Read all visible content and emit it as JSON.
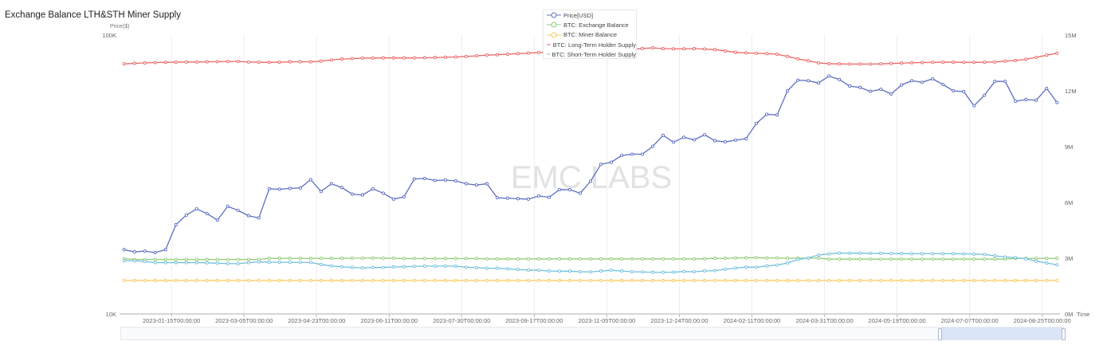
{
  "title": "Exchange Balance LTH&STH Miner Supply",
  "watermark": "EMC LABS",
  "chart_data": {
    "type": "line",
    "title": "Exchange Balance LTH&STH Miner Supply",
    "left_axis": {
      "label": "Price($)",
      "scale": "log",
      "range": [
        10000,
        100000
      ],
      "ticks": [
        "10K",
        "100K"
      ]
    },
    "right_axis": {
      "label": "",
      "scale": "linear",
      "range": [
        0,
        15000000
      ],
      "ticks": [
        "0M",
        "3M",
        "6M",
        "9M",
        "12M",
        "15M"
      ]
    },
    "x_axis": {
      "label": "Time",
      "type": "time",
      "xlim": [
        "2022-12-12",
        "2024-09-06"
      ],
      "ticks": [
        "2023-01-15T00:00:00",
        "2023-03-05T00:00:00",
        "2023-04-23T00:00:00",
        "2023-06-11T00:00:00",
        "2023-07-30T00:00:00",
        "2023-09-17T00:00:00",
        "2023-11-05T00:00:00",
        "2023-12-24T00:00:00",
        "2024-02-11T00:00:00",
        "2024-03-31T00:00:00",
        "2024-05-19T00:00:00",
        "2024-07-07T00:00:00",
        "2024-08-25T00:00:00"
      ]
    },
    "grid": {
      "vertical": true,
      "horizontal": false
    },
    "legend_placement": "top-center",
    "x": [
      "2022-12-14",
      "2022-12-21",
      "2022-12-28",
      "2023-01-04",
      "2023-01-11",
      "2023-01-18",
      "2023-01-25",
      "2023-02-01",
      "2023-02-08",
      "2023-02-15",
      "2023-02-22",
      "2023-03-01",
      "2023-03-08",
      "2023-03-15",
      "2023-03-22",
      "2023-03-29",
      "2023-04-05",
      "2023-04-12",
      "2023-04-19",
      "2023-04-26",
      "2023-05-03",
      "2023-05-10",
      "2023-05-17",
      "2023-05-24",
      "2023-05-31",
      "2023-06-07",
      "2023-06-14",
      "2023-06-21",
      "2023-06-28",
      "2023-07-05",
      "2023-07-12",
      "2023-07-19",
      "2023-07-26",
      "2023-08-02",
      "2023-08-09",
      "2023-08-16",
      "2023-08-23",
      "2023-08-30",
      "2023-09-06",
      "2023-09-13",
      "2023-09-20",
      "2023-09-27",
      "2023-10-04",
      "2023-10-11",
      "2023-10-18",
      "2023-10-25",
      "2023-11-01",
      "2023-11-08",
      "2023-11-15",
      "2023-11-22",
      "2023-11-29",
      "2023-12-06",
      "2023-12-13",
      "2023-12-20",
      "2023-12-27",
      "2024-01-03",
      "2024-01-10",
      "2024-01-17",
      "2024-01-24",
      "2024-01-31",
      "2024-02-07",
      "2024-02-14",
      "2024-02-21",
      "2024-02-28",
      "2024-03-06",
      "2024-03-13",
      "2024-03-20",
      "2024-03-27",
      "2024-04-03",
      "2024-04-10",
      "2024-04-17",
      "2024-04-24",
      "2024-05-01",
      "2024-05-08",
      "2024-05-15",
      "2024-05-22",
      "2024-05-29",
      "2024-06-05",
      "2024-06-12",
      "2024-06-19",
      "2024-06-26",
      "2024-07-03",
      "2024-07-10",
      "2024-07-17",
      "2024-07-24",
      "2024-07-31",
      "2024-08-07",
      "2024-08-14",
      "2024-08-21",
      "2024-08-28",
      "2024-09-04"
    ],
    "series": [
      {
        "name": "Price[USD]",
        "axis": "left",
        "color": "#5d6ec2",
        "values": [
          17000,
          16700,
          16800,
          16600,
          17000,
          20900,
          22600,
          23800,
          22900,
          21700,
          24300,
          23500,
          22500,
          22100,
          28100,
          28000,
          28200,
          28300,
          30300,
          27500,
          29300,
          28400,
          26900,
          26700,
          28100,
          27100,
          25800,
          26300,
          30500,
          30600,
          30100,
          30200,
          30000,
          29300,
          29000,
          29300,
          26100,
          26000,
          25900,
          25800,
          26500,
          26200,
          27900,
          27900,
          27100,
          29900,
          34400,
          35000,
          37000,
          37400,
          37400,
          39900,
          43700,
          41300,
          43000,
          42100,
          43900,
          41800,
          41400,
          42000,
          42500,
          48200,
          52000,
          51700,
          63100,
          68900,
          68600,
          67300,
          71300,
          69300,
          65600,
          64900,
          62800,
          63900,
          61500,
          66200,
          68600,
          67700,
          69700,
          66500,
          63100,
          62700,
          55800,
          60800,
          68200,
          68200,
          57900,
          58700,
          58400,
          64400,
          57300
        ]
      },
      {
        "name": "BTC: Exchange Balance",
        "axis": "right",
        "color": "#91cc75",
        "values": [
          2970000,
          2930000,
          2930000,
          2930000,
          2930000,
          2930000,
          2930000,
          2930000,
          2930000,
          2930000,
          2930000,
          2930000,
          2930000,
          2930000,
          2990000,
          2990000,
          2990000,
          2990000,
          2990000,
          2990000,
          2990000,
          2990000,
          3000000,
          3000000,
          3010000,
          3000000,
          3000000,
          2980000,
          2980000,
          2980000,
          2980000,
          2980000,
          2980000,
          2980000,
          2980000,
          2960000,
          2960000,
          2960000,
          2960000,
          2960000,
          2960000,
          2960000,
          2960000,
          2960000,
          2960000,
          2960000,
          2960000,
          2960000,
          2960000,
          2960000,
          2960000,
          2960000,
          2960000,
          2960000,
          2960000,
          2960000,
          2970000,
          2990000,
          2990000,
          3010000,
          3020000,
          3030000,
          3010000,
          3010000,
          3000000,
          3000000,
          3000000,
          3000000,
          2950000,
          2950000,
          2950000,
          2950000,
          2950000,
          2950000,
          2950000,
          2950000,
          2950000,
          2950000,
          2950000,
          2950000,
          2950000,
          2950000,
          2950000,
          2950000,
          2950000,
          2950000,
          2990000,
          2990000,
          2990000,
          2990000,
          2990000
        ]
      },
      {
        "name": "BTC: Miner Balance",
        "axis": "right",
        "color": "#fac858",
        "values": [
          1800000,
          1800000,
          1800000,
          1800000,
          1800000,
          1800000,
          1800000,
          1800000,
          1800000,
          1800000,
          1800000,
          1800000,
          1800000,
          1800000,
          1800000,
          1800000,
          1800000,
          1800000,
          1800000,
          1800000,
          1800000,
          1800000,
          1800000,
          1800000,
          1800000,
          1800000,
          1800000,
          1800000,
          1800000,
          1800000,
          1800000,
          1800000,
          1800000,
          1800000,
          1800000,
          1800000,
          1800000,
          1800000,
          1800000,
          1800000,
          1800000,
          1800000,
          1800000,
          1800000,
          1800000,
          1800000,
          1800000,
          1800000,
          1800000,
          1800000,
          1800000,
          1800000,
          1800000,
          1800000,
          1800000,
          1800000,
          1800000,
          1800000,
          1800000,
          1800000,
          1800000,
          1800000,
          1800000,
          1800000,
          1800000,
          1800000,
          1800000,
          1800000,
          1800000,
          1800000,
          1800000,
          1800000,
          1800000,
          1800000,
          1800000,
          1800000,
          1800000,
          1800000,
          1800000,
          1800000,
          1800000,
          1800000,
          1800000,
          1800000,
          1800000,
          1800000,
          1800000,
          1800000,
          1800000,
          1800000,
          1800000
        ]
      },
      {
        "name": "BTC: Long-Term Holder Supply",
        "axis": "right",
        "color": "#ee6666",
        "values": [
          13450000,
          13480000,
          13500000,
          13520000,
          13530000,
          13540000,
          13550000,
          13550000,
          13560000,
          13570000,
          13580000,
          13580000,
          13550000,
          13540000,
          13530000,
          13540000,
          13560000,
          13560000,
          13560000,
          13600000,
          13660000,
          13710000,
          13730000,
          13760000,
          13760000,
          13770000,
          13770000,
          13770000,
          13770000,
          13780000,
          13790000,
          13810000,
          13820000,
          13850000,
          13880000,
          13920000,
          13940000,
          13970000,
          14000000,
          14030000,
          14060000,
          14090000,
          14120000,
          14150000,
          14180000,
          14200000,
          14200000,
          14200000,
          14210000,
          14220000,
          14280000,
          14310000,
          14270000,
          14260000,
          14260000,
          14270000,
          14250000,
          14220000,
          14140000,
          14070000,
          14040000,
          14020000,
          14000000,
          13970000,
          13850000,
          13720000,
          13620000,
          13500000,
          13460000,
          13450000,
          13440000,
          13440000,
          13440000,
          13450000,
          13470000,
          13490000,
          13510000,
          13520000,
          13530000,
          13540000,
          13540000,
          13530000,
          13530000,
          13540000,
          13550000,
          13600000,
          13630000,
          13700000,
          13800000,
          13920000,
          14020000
        ]
      },
      {
        "name": "BTC: Short-Term Holder Supply",
        "axis": "right",
        "color": "#73c0de",
        "values": [
          2860000,
          2860000,
          2820000,
          2760000,
          2760000,
          2760000,
          2760000,
          2760000,
          2750000,
          2730000,
          2710000,
          2700000,
          2760000,
          2800000,
          2790000,
          2780000,
          2780000,
          2770000,
          2770000,
          2660000,
          2580000,
          2540000,
          2500000,
          2480000,
          2500000,
          2500000,
          2530000,
          2540000,
          2560000,
          2570000,
          2570000,
          2570000,
          2570000,
          2510000,
          2490000,
          2460000,
          2460000,
          2430000,
          2390000,
          2360000,
          2350000,
          2310000,
          2300000,
          2300000,
          2270000,
          2260000,
          2310000,
          2350000,
          2310000,
          2270000,
          2260000,
          2240000,
          2240000,
          2250000,
          2280000,
          2270000,
          2310000,
          2330000,
          2400000,
          2470000,
          2520000,
          2510000,
          2580000,
          2630000,
          2740000,
          2930000,
          3010000,
          3170000,
          3230000,
          3270000,
          3270000,
          3270000,
          3260000,
          3260000,
          3250000,
          3250000,
          3240000,
          3240000,
          3240000,
          3240000,
          3240000,
          3230000,
          3220000,
          3200000,
          3130000,
          3060000,
          3030000,
          2960000,
          2840000,
          2740000,
          2640000
        ]
      }
    ]
  }
}
